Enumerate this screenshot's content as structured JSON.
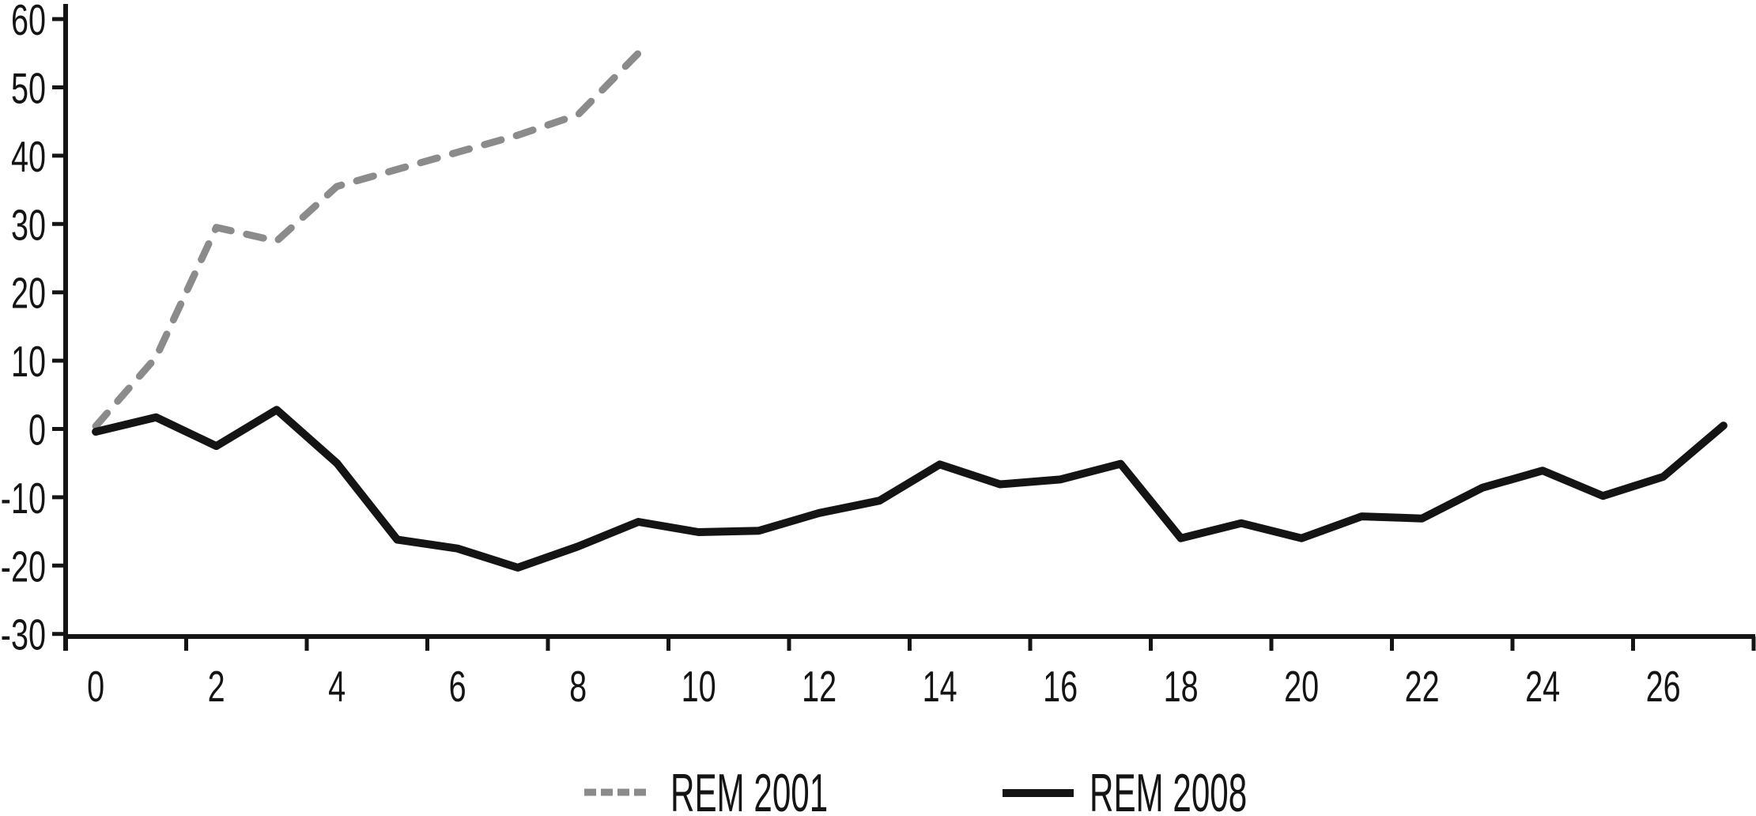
{
  "chart_data": {
    "type": "line",
    "title": "",
    "xlabel": "",
    "ylabel": "",
    "grid": false,
    "legend_position": "bottom-center",
    "x": [
      0,
      1,
      2,
      3,
      4,
      5,
      6,
      7,
      8,
      9,
      10,
      11,
      12,
      13,
      14,
      15,
      16,
      17,
      18,
      19,
      20,
      21,
      22,
      23,
      24,
      25,
      26,
      27
    ],
    "x_tick_labels": [
      "0",
      "2",
      "4",
      "6",
      "8",
      "10",
      "12",
      "14",
      "16",
      "18",
      "20",
      "22",
      "24",
      "26"
    ],
    "x_tick_values": [
      0,
      2,
      4,
      6,
      8,
      10,
      12,
      14,
      16,
      18,
      20,
      22,
      24,
      26
    ],
    "y_ticks": [
      60,
      50,
      40,
      30,
      20,
      10,
      0,
      -10,
      -20,
      -30
    ],
    "ylim": [
      -30,
      60
    ],
    "xlim": [
      0,
      27
    ],
    "series": [
      {
        "name": "REM 2001",
        "style": "dashed",
        "color": "#8b8b8b",
        "values": [
          0.4,
          10.5,
          29.5,
          27.5,
          35.5,
          38,
          40.5,
          43,
          46,
          55
        ]
      },
      {
        "name": "REM 2008",
        "style": "solid",
        "color": "#141414",
        "values": [
          -0.4,
          1.7,
          -2.5,
          2.8,
          -5,
          -16.2,
          -17.5,
          -20.3,
          -17.2,
          -13.6,
          -15.1,
          -14.9,
          -12.3,
          -10.5,
          -5.2,
          -8.1,
          -7.4,
          -5.1,
          -16,
          -13.8,
          -16,
          -12.8,
          -13.1,
          -8.6,
          -6.1,
          -9.8,
          -7,
          0.5
        ]
      }
    ]
  },
  "colors": {
    "background": "#ffffff",
    "axis": "#141414",
    "tick_text": "#141414",
    "rem2001": "#8b8b8b",
    "rem2008": "#141414"
  }
}
